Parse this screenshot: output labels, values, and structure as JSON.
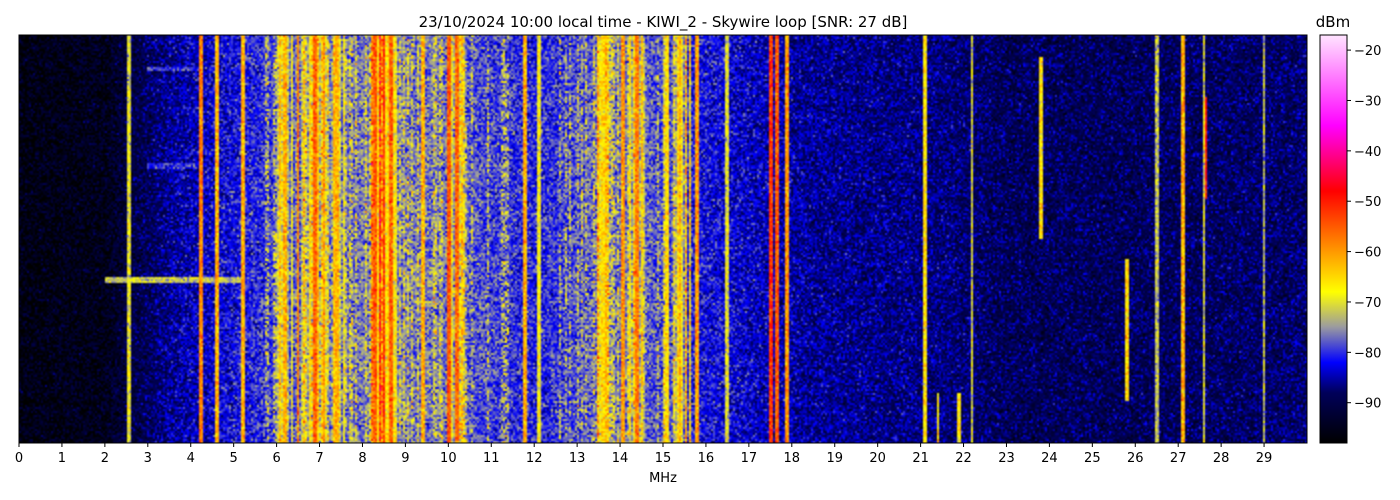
{
  "chart_data": {
    "type": "heatmap",
    "title": "23/10/2024 10:00 local time - KIWI_2 - Skywire loop [SNR: 27 dB]",
    "xlabel": "MHz",
    "ylabel": "",
    "xlim": [
      0,
      30
    ],
    "x_ticks": [
      0,
      1,
      2,
      3,
      4,
      5,
      6,
      7,
      8,
      9,
      10,
      11,
      12,
      13,
      14,
      15,
      16,
      17,
      18,
      19,
      20,
      21,
      22,
      23,
      24,
      25,
      26,
      27,
      28,
      29
    ],
    "colorbar": {
      "title": "dBm",
      "range": [
        -98,
        -17
      ],
      "ticks": [
        -20,
        -30,
        -40,
        -50,
        -60,
        -70,
        -80,
        -90
      ],
      "colormap": [
        {
          "value": -98,
          "color": "#000000"
        },
        {
          "value": -88,
          "color": "#00005a"
        },
        {
          "value": -82,
          "color": "#0000ff"
        },
        {
          "value": -75,
          "color": "#9a9aa0"
        },
        {
          "value": -68,
          "color": "#ffff00"
        },
        {
          "value": -58,
          "color": "#ff8000"
        },
        {
          "value": -48,
          "color": "#ff0000"
        },
        {
          "value": -35,
          "color": "#ff00ff"
        },
        {
          "value": -17,
          "color": "#ffe4ff"
        }
      ]
    },
    "noise_floor_profile": [
      {
        "mhz": 0.0,
        "dbm": -96
      },
      {
        "mhz": 2.0,
        "dbm": -95
      },
      {
        "mhz": 2.6,
        "dbm": -91
      },
      {
        "mhz": 3.5,
        "dbm": -86
      },
      {
        "mhz": 5.0,
        "dbm": -82
      },
      {
        "mhz": 6.0,
        "dbm": -79
      },
      {
        "mhz": 8.5,
        "dbm": -76
      },
      {
        "mhz": 10.0,
        "dbm": -77
      },
      {
        "mhz": 12.0,
        "dbm": -81
      },
      {
        "mhz": 13.5,
        "dbm": -77
      },
      {
        "mhz": 14.5,
        "dbm": -77
      },
      {
        "mhz": 16.0,
        "dbm": -82
      },
      {
        "mhz": 18.5,
        "dbm": -86
      },
      {
        "mhz": 21.5,
        "dbm": -87
      },
      {
        "mhz": 23.0,
        "dbm": -89
      },
      {
        "mhz": 26.0,
        "dbm": -89
      },
      {
        "mhz": 30.0,
        "dbm": -88
      }
    ],
    "bands": [
      {
        "start": 6.0,
        "end": 7.6,
        "dbm": -65
      },
      {
        "start": 8.2,
        "end": 8.8,
        "dbm": -60
      },
      {
        "start": 9.9,
        "end": 10.4,
        "dbm": -65
      },
      {
        "start": 13.4,
        "end": 13.9,
        "dbm": -68
      },
      {
        "start": 14.0,
        "end": 14.6,
        "dbm": -66
      },
      {
        "start": 15.0,
        "end": 15.8,
        "dbm": -70
      }
    ],
    "signals": [
      {
        "mhz": 2.55,
        "dbm": -70
      },
      {
        "mhz": 4.25,
        "dbm": -58
      },
      {
        "mhz": 4.6,
        "dbm": -62
      },
      {
        "mhz": 5.2,
        "dbm": -62
      },
      {
        "mhz": 6.2,
        "dbm": -62
      },
      {
        "mhz": 6.5,
        "dbm": -58
      },
      {
        "mhz": 6.9,
        "dbm": -56
      },
      {
        "mhz": 7.1,
        "dbm": -60
      },
      {
        "mhz": 7.4,
        "dbm": -62
      },
      {
        "mhz": 8.3,
        "dbm": -55
      },
      {
        "mhz": 8.5,
        "dbm": -52
      },
      {
        "mhz": 8.65,
        "dbm": -55
      },
      {
        "mhz": 9.4,
        "dbm": -62
      },
      {
        "mhz": 10.0,
        "dbm": -55
      },
      {
        "mhz": 10.2,
        "dbm": -56
      },
      {
        "mhz": 11.8,
        "dbm": -62
      },
      {
        "mhz": 12.1,
        "dbm": -68
      },
      {
        "mhz": 13.6,
        "dbm": -66
      },
      {
        "mhz": 14.05,
        "dbm": -60
      },
      {
        "mhz": 14.4,
        "dbm": -58
      },
      {
        "mhz": 15.1,
        "dbm": -66
      },
      {
        "mhz": 15.4,
        "dbm": -62
      },
      {
        "mhz": 15.8,
        "dbm": -60
      },
      {
        "mhz": 16.5,
        "dbm": -70
      },
      {
        "mhz": 17.5,
        "dbm": -52
      },
      {
        "mhz": 17.65,
        "dbm": -55
      },
      {
        "mhz": 17.9,
        "dbm": -60
      },
      {
        "mhz": 21.1,
        "dbm": -66
      },
      {
        "mhz": 22.2,
        "dbm": -70
      },
      {
        "mhz": 26.5,
        "dbm": -72
      },
      {
        "mhz": 27.1,
        "dbm": -62
      },
      {
        "mhz": 27.6,
        "dbm": -70
      },
      {
        "mhz": 29.0,
        "dbm": -72
      }
    ],
    "bursts": [
      {
        "mhz": 23.8,
        "from": 0.05,
        "to": 0.5,
        "dbm": -66
      },
      {
        "mhz": 25.8,
        "from": 0.55,
        "to": 0.9,
        "dbm": -65
      },
      {
        "mhz": 27.65,
        "from": 0.15,
        "to": 0.4,
        "dbm": -50
      },
      {
        "mhz": 21.4,
        "from": 0.88,
        "to": 1.0,
        "dbm": -66
      },
      {
        "mhz": 21.9,
        "from": 0.88,
        "to": 1.0,
        "dbm": -66
      }
    ],
    "hlines": [
      {
        "from": 2.0,
        "to": 5.2,
        "time": 0.6,
        "dbm": -72
      },
      {
        "from": 3.0,
        "to": 4.2,
        "time": 0.08,
        "dbm": -80
      },
      {
        "from": 3.0,
        "to": 4.2,
        "time": 0.32,
        "dbm": -80
      }
    ]
  }
}
